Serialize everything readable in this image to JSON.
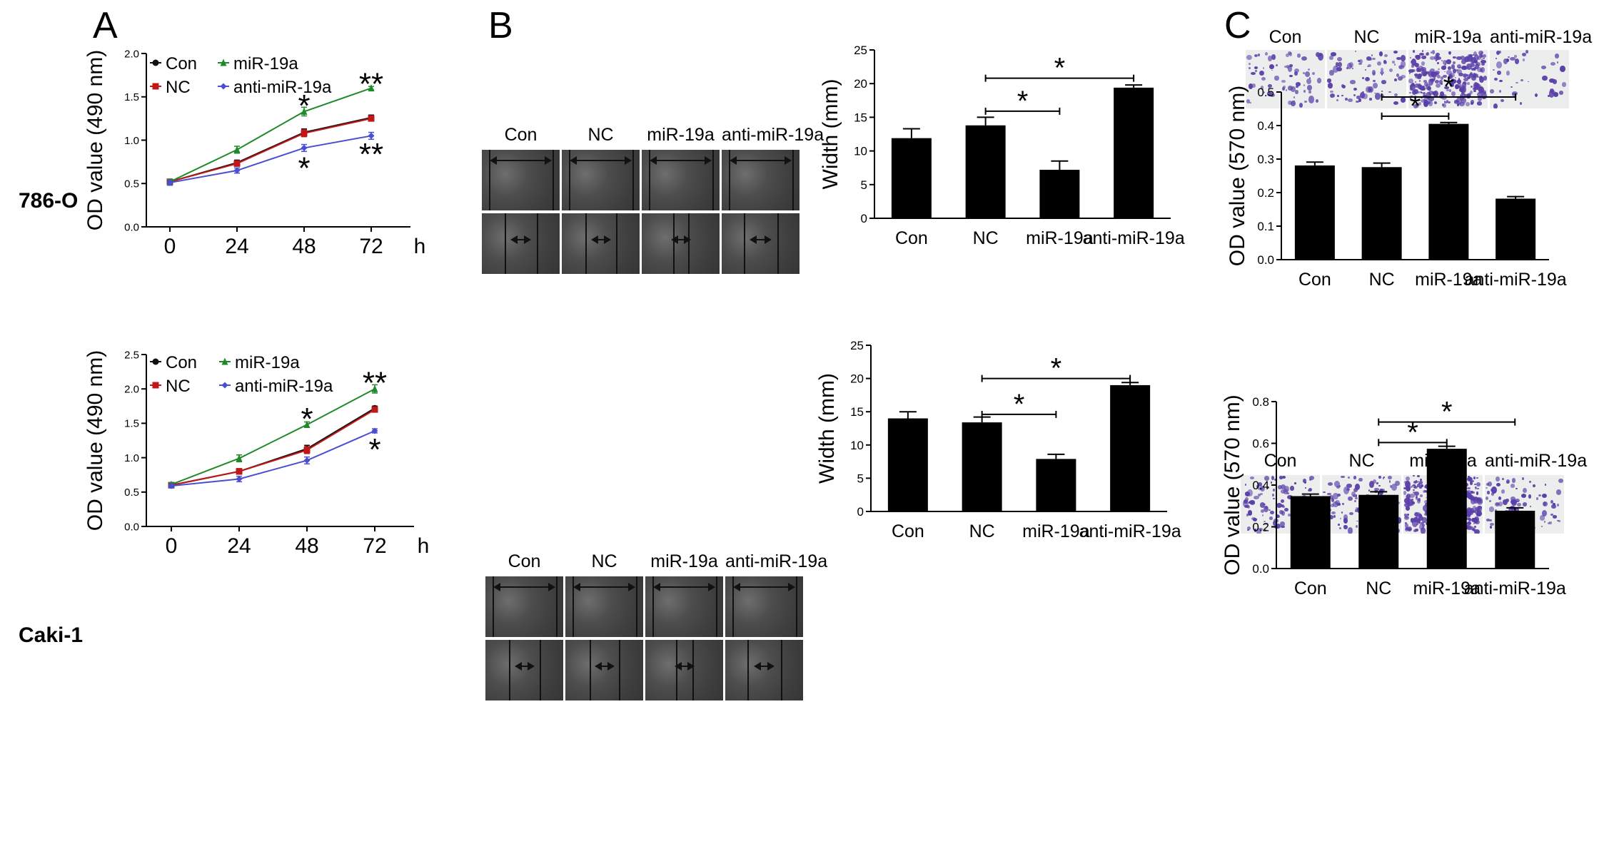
{
  "panel_letters": [
    "A",
    "B",
    "C"
  ],
  "row_labels": [
    "786-O",
    "Caki-1"
  ],
  "photo_labels": [
    "Con",
    "NC",
    "miR-19a",
    "anti-miR-19a"
  ],
  "colors": {
    "con": "#111111",
    "nc": "#c01818",
    "mir19a": "#1f8a2a",
    "anti": "#4a4fd0",
    "bar": "#000000"
  },
  "chart_data": [
    {
      "id": "a-786o",
      "type": "line",
      "title": "",
      "xlabel": "",
      "ylabel": "OD value (490 nm)",
      "x_unit": "h",
      "x": [
        0,
        24,
        48,
        72
      ],
      "xticks": [
        "0",
        "24",
        "48",
        "72"
      ],
      "ylim": [
        0,
        2.0
      ],
      "yticks": [
        "0.0",
        "0.5",
        "1.0",
        "1.5",
        "2.0"
      ],
      "series": [
        {
          "name": "Con",
          "values": [
            0.52,
            0.74,
            1.09,
            1.26
          ],
          "errors": [
            0.03,
            0.03,
            0.04,
            0.03
          ]
        },
        {
          "name": "NC",
          "values": [
            0.52,
            0.73,
            1.08,
            1.25
          ],
          "errors": [
            0.03,
            0.03,
            0.04,
            0.03
          ]
        },
        {
          "name": "miR-19a",
          "values": [
            0.52,
            0.89,
            1.33,
            1.6
          ],
          "errors": [
            0.03,
            0.04,
            0.05,
            0.02
          ]
        },
        {
          "name": "anti-miR-19a",
          "values": [
            0.51,
            0.65,
            0.91,
            1.05
          ],
          "errors": [
            0.03,
            0.03,
            0.04,
            0.04
          ]
        }
      ],
      "annotations": [
        {
          "text": "*",
          "x": 48,
          "y": 1.44
        },
        {
          "text": "**",
          "x": 72,
          "y": 1.69
        },
        {
          "text": "*",
          "x": 48,
          "y": 0.72
        },
        {
          "text": "**",
          "x": 72,
          "y": 0.88
        }
      ],
      "grid": false,
      "legend": "top-left"
    },
    {
      "id": "a-caki1",
      "type": "line",
      "title": "",
      "xlabel": "",
      "ylabel": "OD value (490 nm)",
      "x_unit": "h",
      "x": [
        0,
        24,
        48,
        72
      ],
      "xticks": [
        "0",
        "24",
        "48",
        "72"
      ],
      "ylim": [
        0,
        2.5
      ],
      "yticks": [
        "0.0",
        "0.5",
        "1.0",
        "1.5",
        "2.0",
        "2.5"
      ],
      "series": [
        {
          "name": "Con",
          "values": [
            0.6,
            0.8,
            1.13,
            1.72
          ],
          "errors": [
            0.03,
            0.04,
            0.05,
            0.03
          ]
        },
        {
          "name": "NC",
          "values": [
            0.6,
            0.8,
            1.11,
            1.7
          ],
          "errors": [
            0.03,
            0.04,
            0.05,
            0.03
          ]
        },
        {
          "name": "miR-19a",
          "values": [
            0.61,
            0.99,
            1.48,
            2.0
          ],
          "errors": [
            0.03,
            0.05,
            0.04,
            0.06
          ]
        },
        {
          "name": "anti-miR-19a",
          "values": [
            0.59,
            0.69,
            0.96,
            1.39
          ],
          "errors": [
            0.03,
            0.04,
            0.05,
            0.03
          ]
        }
      ],
      "annotations": [
        {
          "text": "*",
          "x": 48,
          "y": 1.62
        },
        {
          "text": "**",
          "x": 72,
          "y": 2.14
        },
        {
          "text": "*",
          "x": 72,
          "y": 1.17
        }
      ],
      "grid": false,
      "legend": "top-left"
    },
    {
      "id": "b-786o",
      "type": "bar",
      "title": "",
      "xlabel": "",
      "ylabel": "Width  (mm)",
      "categories": [
        "Con",
        "NC",
        "miR-19a",
        "anti-miR-19a"
      ],
      "values": [
        11.9,
        13.8,
        7.2,
        19.4
      ],
      "errors": [
        1.4,
        1.2,
        1.3,
        0.4
      ],
      "ylim": [
        0,
        25
      ],
      "yticks": [
        "0",
        "5",
        "10",
        "15",
        "20",
        "25"
      ],
      "significance": [
        {
          "from": 1,
          "to": 2,
          "y": 15.9,
          "text": "*"
        },
        {
          "from": 1,
          "to": 3,
          "y": 20.8,
          "text": "*"
        }
      ],
      "grid": false
    },
    {
      "id": "b-caki1",
      "type": "bar",
      "title": "",
      "xlabel": "",
      "ylabel": "Width  (mm)",
      "categories": [
        "Con",
        "NC",
        "miR-19a",
        "anti-miR-19a"
      ],
      "values": [
        14.0,
        13.4,
        7.9,
        19.0
      ],
      "errors": [
        1.0,
        0.8,
        0.7,
        0.4
      ],
      "ylim": [
        0,
        25
      ],
      "yticks": [
        "0",
        "5",
        "10",
        "15",
        "20",
        "25"
      ],
      "significance": [
        {
          "from": 1,
          "to": 2,
          "y": 14.6,
          "text": "*"
        },
        {
          "from": 1,
          "to": 3,
          "y": 20.0,
          "text": "*"
        }
      ],
      "grid": false
    },
    {
      "id": "c-786o",
      "type": "bar",
      "title": "",
      "xlabel": "",
      "ylabel": "OD value (570 nm)",
      "categories": [
        "Con",
        "NC",
        "miR-19a",
        "anti-miR-19a"
      ],
      "values": [
        0.281,
        0.276,
        0.405,
        0.182
      ],
      "errors": [
        0.01,
        0.012,
        0.004,
        0.006
      ],
      "ylim": [
        0,
        0.5
      ],
      "yticks": [
        "0.0",
        "0.1",
        "0.2",
        "0.3",
        "0.4",
        "0.5"
      ],
      "significance": [
        {
          "from": 1,
          "to": 2,
          "y": 0.428,
          "text": "*"
        },
        {
          "from": 1,
          "to": 3,
          "y": 0.485,
          "text": "*"
        }
      ],
      "grid": false
    },
    {
      "id": "c-caki1",
      "type": "bar",
      "title": "",
      "xlabel": "",
      "ylabel": "OD value (570 nm)",
      "categories": [
        "Con",
        "NC",
        "miR-19a",
        "anti-miR-19a"
      ],
      "values": [
        0.347,
        0.353,
        0.574,
        0.277
      ],
      "errors": [
        0.01,
        0.015,
        0.012,
        0.014
      ],
      "ylim": [
        0,
        0.8
      ],
      "yticks": [
        "0.0",
        "0.2",
        "0.4",
        "0.6",
        "0.8"
      ],
      "significance": [
        {
          "from": 1,
          "to": 2,
          "y": 0.604,
          "text": "*"
        },
        {
          "from": 1,
          "to": 3,
          "y": 0.702,
          "text": "*"
        }
      ],
      "grid": false
    }
  ]
}
